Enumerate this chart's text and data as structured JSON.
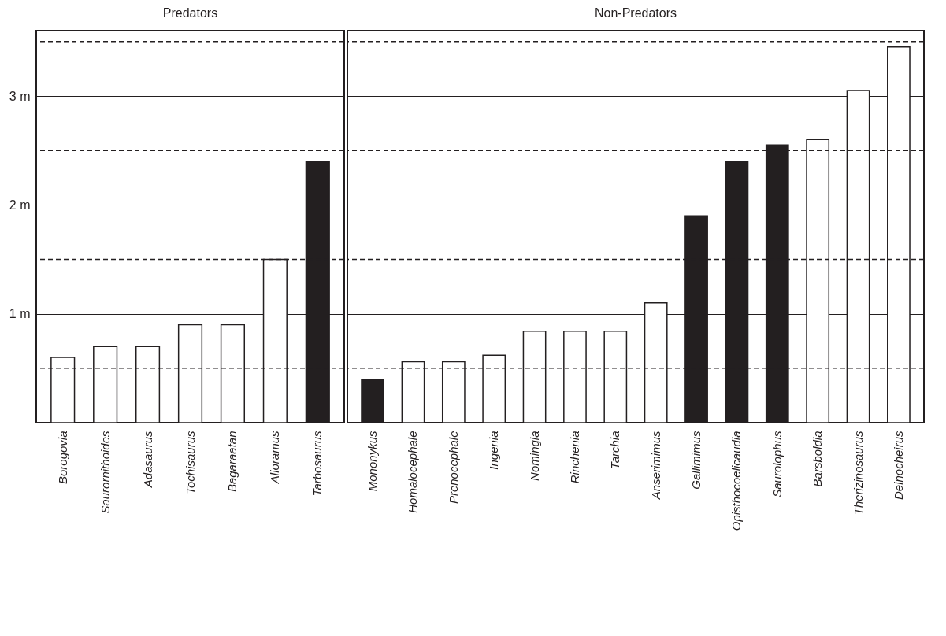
{
  "chart_data": [
    {
      "type": "bar",
      "title": "Predators",
      "categories": [
        "Borogovia",
        "Saurornithoides",
        "Adasaurus",
        "Tochisaurus",
        "Bagaraatan",
        "Alioramus",
        "Tarbosaurus"
      ],
      "values": [
        0.6,
        0.7,
        0.7,
        0.9,
        0.9,
        1.5,
        2.4
      ],
      "colors": [
        "#ffffff",
        "#ffffff",
        "#ffffff",
        "#ffffff",
        "#ffffff",
        "#ffffff",
        "#231f20"
      ],
      "ylim": [
        0,
        3.6
      ],
      "yticks": [
        {
          "value": 1,
          "label": "1 m"
        },
        {
          "value": 2,
          "label": "2 m"
        },
        {
          "value": 3,
          "label": "3 m"
        }
      ],
      "grid": "y",
      "ref_lines": [
        {
          "axis": "y",
          "value": 0.5,
          "line_style": "dashed"
        },
        {
          "axis": "y",
          "value": 1.5,
          "line_style": "dashed"
        },
        {
          "axis": "y",
          "value": 2.5,
          "line_style": "dashed"
        },
        {
          "axis": "y",
          "value": 3.5,
          "line_style": "dashed"
        }
      ]
    },
    {
      "type": "bar",
      "title": "Non-Predators",
      "categories": [
        "Mononykus",
        "Homalocephale",
        "Prenocephale",
        "Ingenia",
        "Nomingia",
        "Rinchenia",
        "Tarchia",
        "Anserimimus",
        "Gallimimus",
        "Opisthocoelicaudia",
        "Saurolophus",
        "Barsboldia",
        "Therizinosaurus",
        "Deinocheirus"
      ],
      "values": [
        0.4,
        0.56,
        0.56,
        0.62,
        0.84,
        0.84,
        0.84,
        1.1,
        1.9,
        2.4,
        2.55,
        2.6,
        3.05,
        3.45
      ],
      "colors": [
        "#231f20",
        "#ffffff",
        "#ffffff",
        "#ffffff",
        "#ffffff",
        "#ffffff",
        "#ffffff",
        "#ffffff",
        "#231f20",
        "#231f20",
        "#231f20",
        "#ffffff",
        "#ffffff",
        "#ffffff"
      ],
      "ylim": [
        0,
        3.6
      ],
      "yticks": [
        1,
        2,
        3
      ],
      "grid": "y",
      "tick_labels": "x",
      "ref_lines": [
        {
          "axis": "y",
          "value": 0.5,
          "line_style": "dashed"
        },
        {
          "axis": "y",
          "value": 1.5,
          "line_style": "dashed"
        },
        {
          "axis": "y",
          "value": 2.5,
          "line_style": "dashed"
        },
        {
          "axis": "y",
          "value": 3.5,
          "line_style": "dashed"
        }
      ]
    }
  ]
}
